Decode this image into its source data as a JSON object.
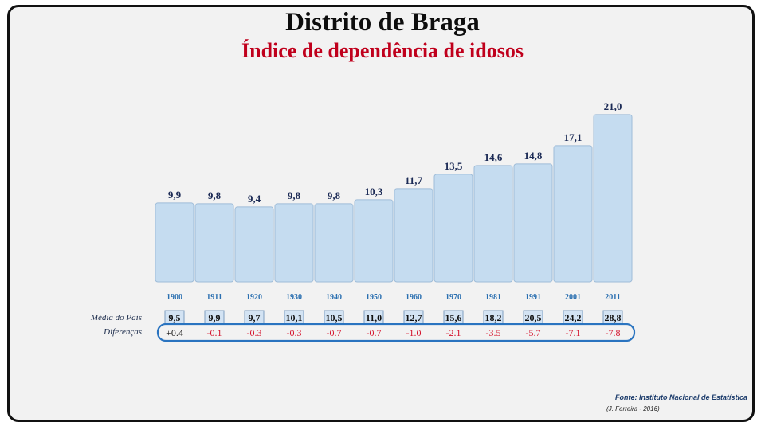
{
  "chart_data": {
    "type": "bar",
    "title": "Distrito de Braga",
    "subtitle": "Índice de dependência de idosos",
    "categories": [
      "1900",
      "1911",
      "1920",
      "1930",
      "1940",
      "1950",
      "1960",
      "1970",
      "1981",
      "1991",
      "2001",
      "2011"
    ],
    "values": [
      9.9,
      9.8,
      9.4,
      9.8,
      9.8,
      10.3,
      11.7,
      13.5,
      14.6,
      14.8,
      17.1,
      21.0
    ],
    "value_labels": [
      "9,9",
      "9,8",
      "9,4",
      "9,8",
      "9,8",
      "10,3",
      "11,7",
      "13,5",
      "14,6",
      "14,8",
      "17,1",
      "21,0"
    ],
    "ylim": [
      0,
      22
    ],
    "bar_color": "#c5dcf0",
    "national_average": {
      "label": "Média do País",
      "values": [
        "9,5",
        "9,9",
        "9,7",
        "10,1",
        "10,5",
        "11,0",
        "12,7",
        "15,6",
        "18,2",
        "20,5",
        "24,2",
        "28,8"
      ]
    },
    "differences": {
      "label": "Diferenças",
      "values": [
        "+0.4",
        "-0.1",
        "-0.3",
        "-0.3",
        "-0.7",
        "-0.7",
        "-1.0",
        "-2.1",
        "-3.5",
        "-5.7",
        "-7.1",
        "-7.8"
      ]
    }
  },
  "source": "Fonte: Instituto Nacional de Estatística",
  "author": "(J. Ferreira - 2016)",
  "colors": {
    "title": "#0d0d0d",
    "subtitle": "#c0001c",
    "value_label": "#1b2a55",
    "year_label": "#2a6fb0",
    "negative": "#d4102a",
    "positive": "#111111",
    "oval": "#2a74c0"
  }
}
